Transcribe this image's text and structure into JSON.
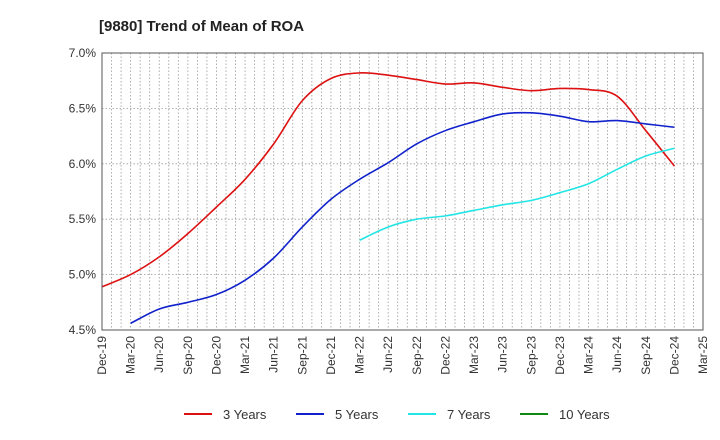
{
  "chart_data": {
    "type": "line",
    "title": "[9880]  Trend of Mean of ROA",
    "xlabel": "",
    "ylabel": "",
    "ylim": [
      4.5,
      7.0
    ],
    "y_ticks": [
      {
        "value": 4.5,
        "label": "4.5%"
      },
      {
        "value": 5.0,
        "label": "5.0%"
      },
      {
        "value": 5.5,
        "label": "5.5%"
      },
      {
        "value": 6.0,
        "label": "6.0%"
      },
      {
        "value": 6.5,
        "label": "6.5%"
      },
      {
        "value": 7.0,
        "label": "7.0%"
      }
    ],
    "x_ticks": [
      "Dec-19",
      "Mar-20",
      "Jun-20",
      "Sep-20",
      "Dec-20",
      "Mar-21",
      "Jun-21",
      "Sep-21",
      "Dec-21",
      "Mar-22",
      "Jun-22",
      "Sep-22",
      "Dec-22",
      "Mar-23",
      "Jun-23",
      "Sep-23",
      "Dec-23",
      "Mar-24",
      "Jun-24",
      "Sep-24",
      "Dec-24",
      "Mar-25"
    ],
    "grid": true,
    "legend_position": "bottom",
    "series": [
      {
        "name": "3 Years",
        "color": "#dd1111",
        "x": [
          "Dec-19",
          "Mar-20",
          "Jun-20",
          "Sep-20",
          "Dec-20",
          "Mar-21",
          "Jun-21",
          "Sep-21",
          "Dec-21",
          "Mar-22",
          "Jun-22",
          "Sep-22",
          "Dec-22",
          "Mar-23",
          "Jun-23",
          "Sep-23",
          "Dec-23",
          "Mar-24",
          "Jun-24",
          "Sep-24",
          "Dec-24"
        ],
        "values": [
          4.89,
          5.0,
          5.16,
          5.37,
          5.61,
          5.86,
          6.18,
          6.57,
          6.77,
          6.82,
          6.8,
          6.76,
          6.72,
          6.73,
          6.69,
          6.66,
          6.68,
          6.67,
          6.61,
          6.3,
          5.98
        ]
      },
      {
        "name": "5 Years",
        "color": "#1122cc",
        "x": [
          "Mar-20",
          "Jun-20",
          "Sep-20",
          "Dec-20",
          "Mar-21",
          "Jun-21",
          "Sep-21",
          "Dec-21",
          "Mar-22",
          "Jun-22",
          "Sep-22",
          "Dec-22",
          "Mar-23",
          "Jun-23",
          "Sep-23",
          "Dec-23",
          "Mar-24",
          "Jun-24",
          "Sep-24",
          "Dec-24"
        ],
        "values": [
          4.56,
          4.69,
          4.75,
          4.82,
          4.95,
          5.15,
          5.43,
          5.68,
          5.86,
          6.01,
          6.18,
          6.3,
          6.38,
          6.45,
          6.46,
          6.43,
          6.38,
          6.39,
          6.36,
          6.33
        ]
      },
      {
        "name": "7 Years",
        "color": "#22e5e5",
        "x": [
          "Mar-22",
          "Jun-22",
          "Sep-22",
          "Dec-22",
          "Mar-23",
          "Jun-23",
          "Sep-23",
          "Dec-23",
          "Mar-24",
          "Jun-24",
          "Sep-24",
          "Dec-24"
        ],
        "values": [
          5.31,
          5.43,
          5.5,
          5.53,
          5.58,
          5.63,
          5.67,
          5.74,
          5.82,
          5.95,
          6.07,
          6.14
        ]
      },
      {
        "name": "10 Years",
        "color": "#118811",
        "x": [],
        "values": []
      }
    ]
  }
}
